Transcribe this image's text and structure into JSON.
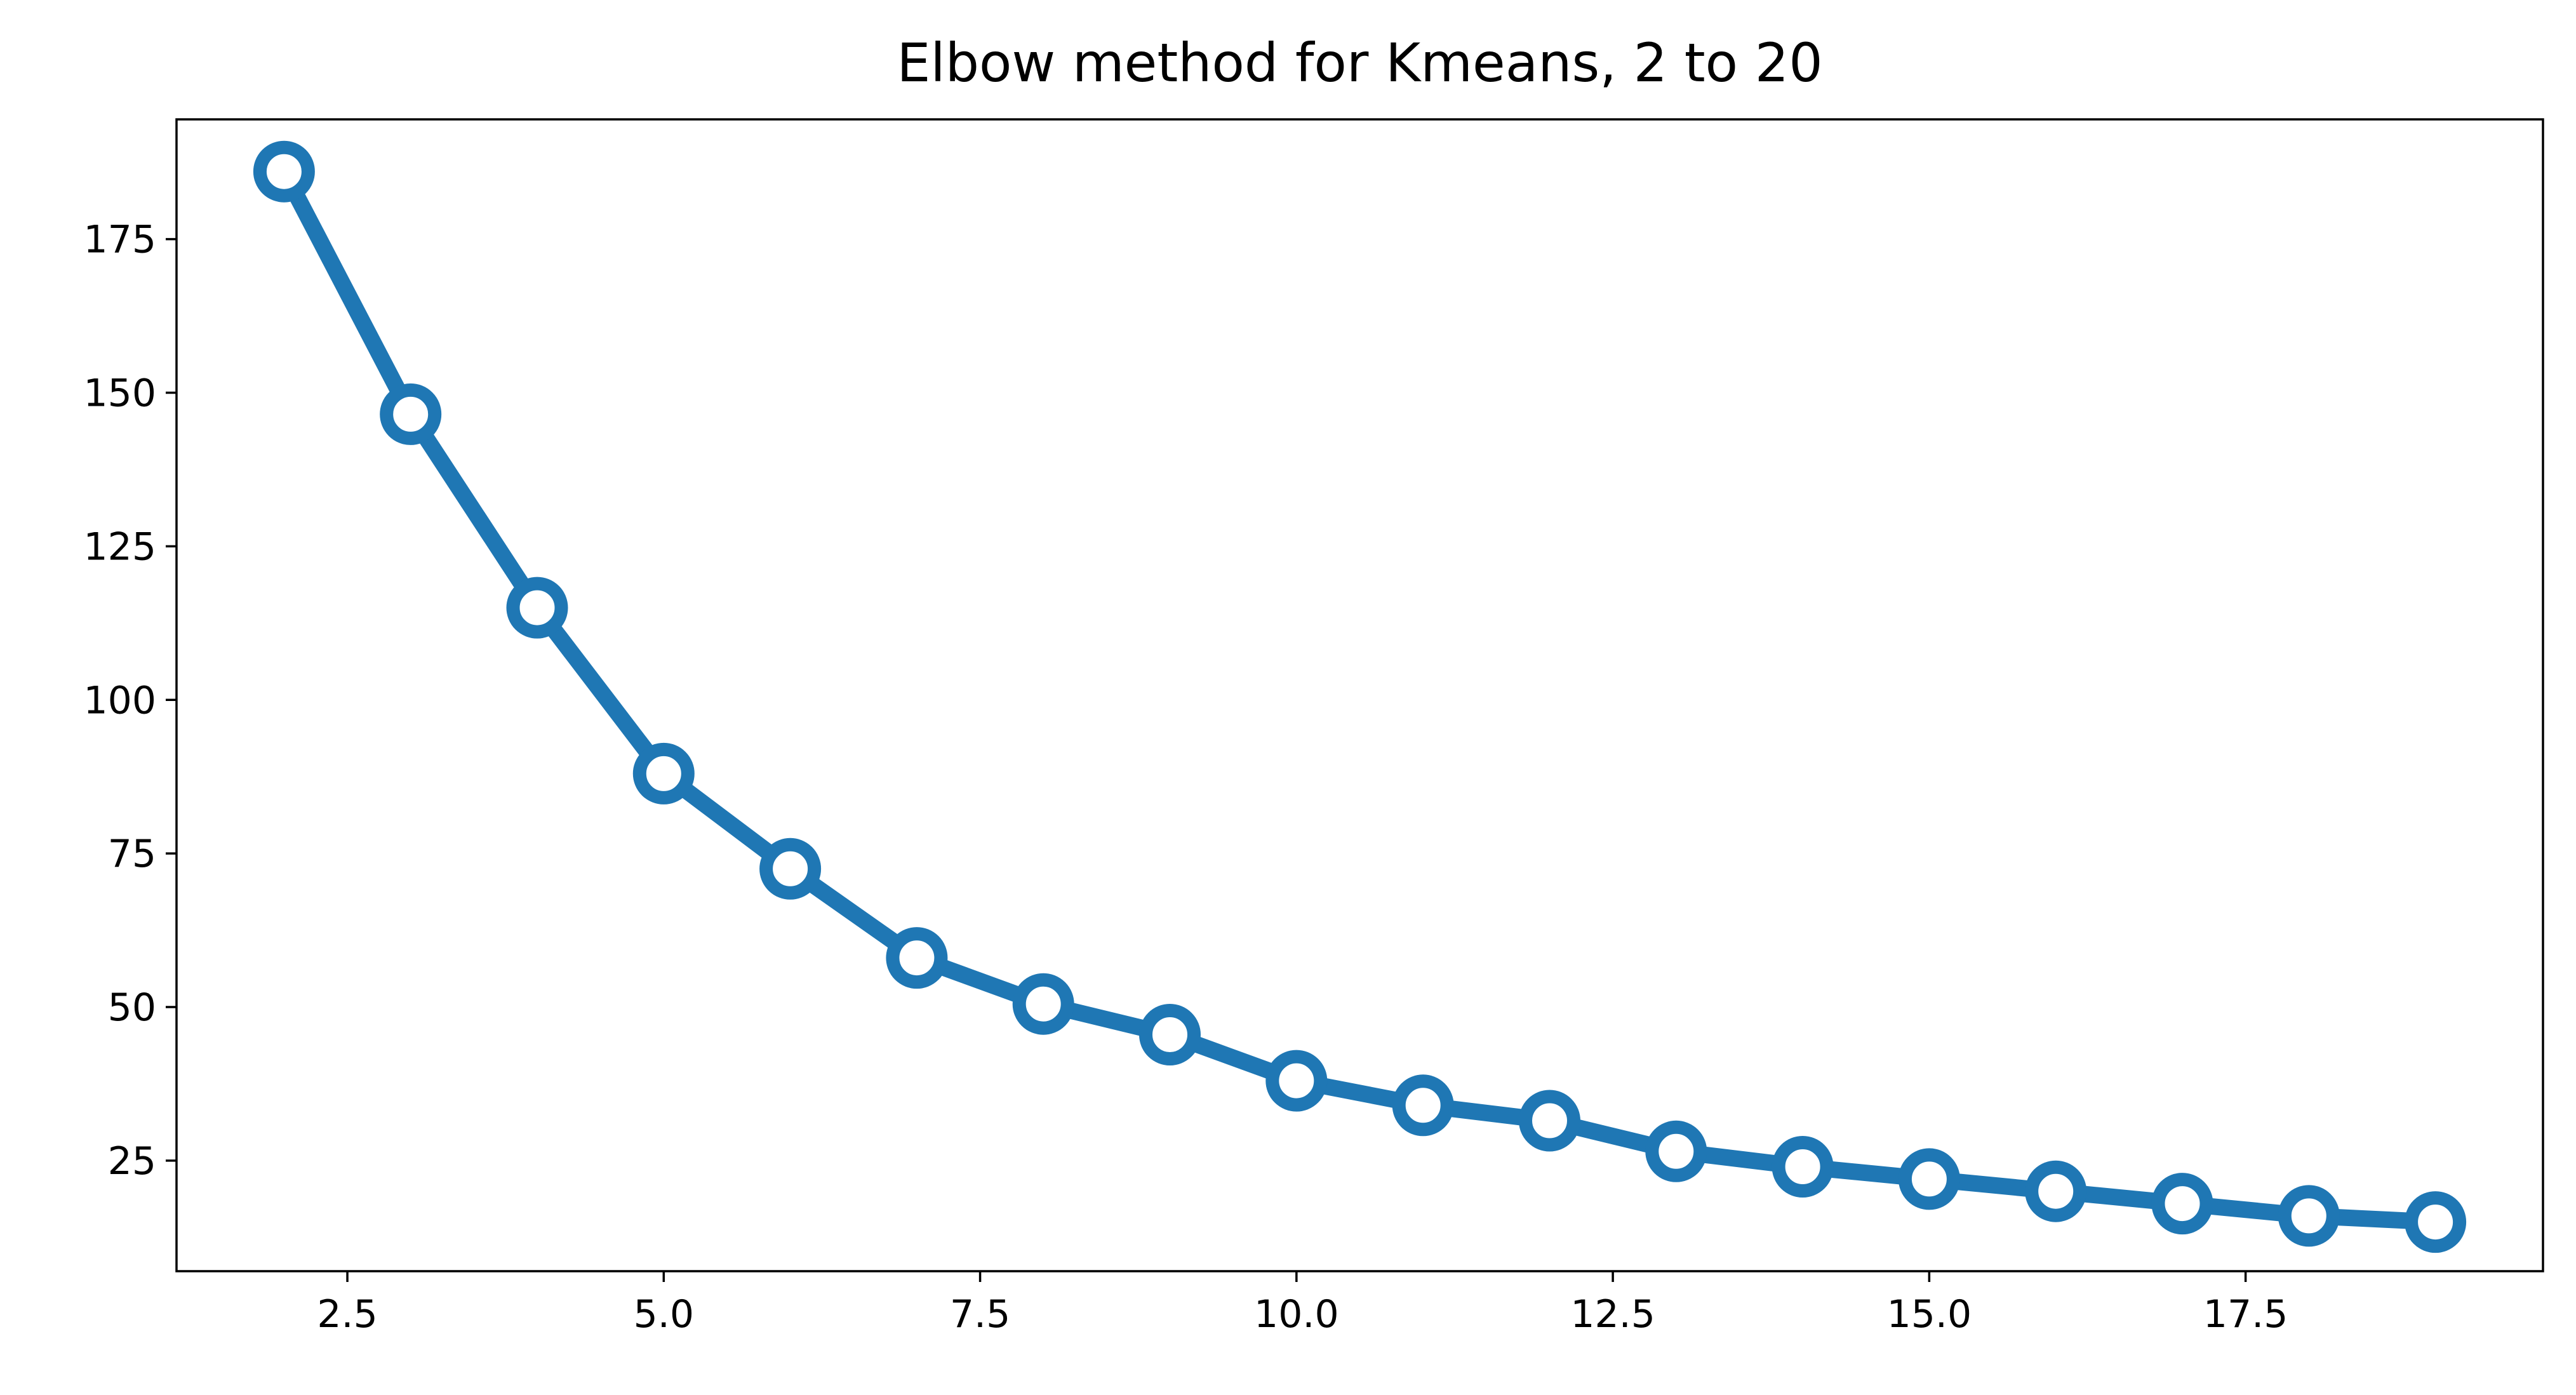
{
  "chart_data": {
    "type": "line",
    "title": "Elbow method for Kmeans, 2 to 20",
    "xlabel": "",
    "ylabel": "",
    "x": [
      2,
      3,
      4,
      5,
      6,
      7,
      8,
      9,
      10,
      11,
      12,
      13,
      14,
      15,
      16,
      17,
      18,
      19
    ],
    "series": [
      {
        "values": [
          186,
          146.5,
          115,
          88,
          72.5,
          58,
          50.5,
          45.5,
          38,
          34,
          31.5,
          26.5,
          24,
          22,
          20,
          18,
          16,
          15
        ]
      }
    ],
    "xlim": [
      1.15,
      19.85
    ],
    "ylim": [
      7,
      194.5
    ],
    "xticks": [
      2.5,
      5.0,
      7.5,
      10.0,
      12.5,
      15.0,
      17.5
    ],
    "xtick_labels": [
      "2.5",
      "5.0",
      "7.5",
      "10.0",
      "12.5",
      "15.0",
      "17.5"
    ],
    "yticks": [
      25,
      50,
      75,
      100,
      125,
      150,
      175
    ],
    "ytick_labels": [
      "25",
      "50",
      "75",
      "100",
      "125",
      "150",
      "175"
    ],
    "grid": false,
    "legend": "none",
    "colors": {
      "line": "#1f77b4",
      "marker_face": "#ffffff",
      "axis": "#000000",
      "background": "#ffffff"
    }
  }
}
